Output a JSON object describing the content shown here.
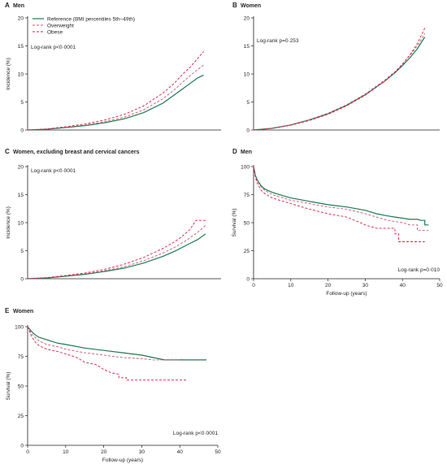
{
  "chart_data": [
    {
      "panel": "A",
      "type": "line",
      "title": "Men",
      "xlabel": "",
      "ylabel": "Incidence (%)",
      "xlim": [
        0,
        50
      ],
      "ylim": [
        0,
        20
      ],
      "yticks": [
        0,
        5,
        10,
        15,
        20
      ],
      "xticks": [],
      "annotation": "Log-rank p<0·0001",
      "legend": [
        "Reference (BMI percentiles 5th–49th)",
        "Overweight",
        "Obese"
      ],
      "series": [
        {
          "name": "Reference (BMI percentiles 5th–49th)",
          "color": "#1d7a52",
          "dash": "solid",
          "x": [
            0,
            5,
            10,
            15,
            20,
            25,
            30,
            35,
            38,
            40,
            42,
            44,
            45.5
          ],
          "y": [
            0,
            0.15,
            0.45,
            0.8,
            1.3,
            2.0,
            3.1,
            4.8,
            6.3,
            7.3,
            8.3,
            9.3,
            9.8
          ]
        },
        {
          "name": "Overweight",
          "color": "#c2577a",
          "dash": "3,2",
          "x": [
            0,
            5,
            10,
            15,
            20,
            25,
            30,
            35,
            38,
            40,
            42,
            44,
            45.5
          ],
          "y": [
            0,
            0.17,
            0.5,
            0.9,
            1.5,
            2.3,
            3.6,
            5.6,
            7.2,
            8.5,
            9.7,
            10.8,
            11.6
          ]
        },
        {
          "name": "Obese",
          "color": "#d9213b",
          "dash": "3,2",
          "x": [
            0,
            5,
            10,
            15,
            20,
            25,
            30,
            35,
            38,
            40,
            42,
            44,
            45.5
          ],
          "y": [
            0,
            0.2,
            0.6,
            1.1,
            1.8,
            2.8,
            4.3,
            6.6,
            8.4,
            9.9,
            11.2,
            12.8,
            14.0
          ]
        }
      ]
    },
    {
      "panel": "B",
      "type": "line",
      "title": "Women",
      "xlabel": "",
      "ylabel": "",
      "xlim": [
        0,
        50
      ],
      "ylim": [
        0,
        20
      ],
      "yticks": [
        0,
        5,
        10,
        15,
        20
      ],
      "xticks": [],
      "annotation": "Log-rank p=0·253",
      "series": [
        {
          "name": "Reference (BMI percentiles 5th–49th)",
          "color": "#1d7a52",
          "dash": "solid",
          "x": [
            0,
            5,
            10,
            15,
            20,
            25,
            30,
            35,
            38,
            40,
            42,
            44,
            46
          ],
          "y": [
            0,
            0.3,
            0.9,
            1.8,
            2.9,
            4.4,
            6.3,
            8.6,
            10.2,
            11.5,
            12.9,
            14.5,
            16.6
          ]
        },
        {
          "name": "Overweight",
          "color": "#c2577a",
          "dash": "3,2",
          "x": [
            0,
            5,
            10,
            15,
            20,
            25,
            30,
            35,
            38,
            40,
            42,
            44,
            46
          ],
          "y": [
            0,
            0.32,
            0.95,
            1.85,
            3.0,
            4.5,
            6.4,
            8.8,
            10.4,
            11.8,
            13.3,
            15.0,
            17.2
          ]
        },
        {
          "name": "Obese",
          "color": "#d9213b",
          "dash": "3,2",
          "x": [
            0,
            5,
            10,
            15,
            20,
            25,
            30,
            35,
            38,
            40,
            42,
            44,
            46
          ],
          "y": [
            0,
            0.28,
            0.85,
            1.7,
            2.8,
            4.3,
            6.2,
            8.6,
            10.3,
            11.7,
            13.4,
            15.4,
            18.2
          ]
        }
      ]
    },
    {
      "panel": "C",
      "type": "line",
      "title": "Women, excluding breast and cervical cancers",
      "xlabel": "",
      "ylabel": "Incidence (%)",
      "xlim": [
        0,
        50
      ],
      "ylim": [
        0,
        20
      ],
      "yticks": [
        0,
        5,
        10,
        15,
        20
      ],
      "xticks": [],
      "annotation": "Log-rank p<0·0001",
      "series": [
        {
          "name": "Reference (BMI percentiles 5th–49th)",
          "color": "#1d7a52",
          "dash": "solid",
          "x": [
            0,
            5,
            10,
            15,
            20,
            25,
            30,
            35,
            38,
            40,
            42,
            44,
            46
          ],
          "y": [
            0,
            0.15,
            0.45,
            0.8,
            1.3,
            1.9,
            2.8,
            4.0,
            4.9,
            5.6,
            6.3,
            7.0,
            8.0
          ]
        },
        {
          "name": "Overweight",
          "color": "#c2577a",
          "dash": "3,2",
          "x": [
            0,
            5,
            10,
            15,
            20,
            25,
            30,
            35,
            38,
            40,
            42,
            44,
            46
          ],
          "y": [
            0,
            0.17,
            0.5,
            0.9,
            1.45,
            2.15,
            3.2,
            4.6,
            5.6,
            6.4,
            7.3,
            8.3,
            9.5
          ]
        },
        {
          "name": "Obese",
          "color": "#d9213b",
          "dash": "3,2",
          "x": [
            0,
            5,
            10,
            15,
            20,
            25,
            30,
            35,
            38,
            40,
            42,
            43.5,
            46
          ],
          "y": [
            0,
            0.2,
            0.6,
            1.05,
            1.7,
            2.6,
            3.8,
            5.4,
            6.6,
            7.6,
            8.8,
            10.4,
            10.4
          ]
        }
      ]
    },
    {
      "panel": "D",
      "type": "line",
      "title": "Men",
      "xlabel": "Follow-up (years)",
      "ylabel": "Survival (%)",
      "xlim": [
        0,
        50
      ],
      "ylim": [
        0,
        100
      ],
      "yticks": [
        0,
        25,
        50,
        75,
        100
      ],
      "xticks": [
        0,
        10,
        20,
        30,
        40,
        50
      ],
      "annotation": "Log-rank p=0·010",
      "series": [
        {
          "name": "Reference (BMI percentiles 5th–49th)",
          "color": "#1d7a52",
          "dash": "solid",
          "x": [
            0,
            0.5,
            1,
            2,
            3,
            5,
            8,
            10,
            15,
            20,
            25,
            30,
            33,
            36,
            38,
            40,
            42,
            44,
            45,
            46,
            46,
            47
          ],
          "y": [
            100,
            92,
            88,
            83,
            80,
            77,
            74,
            72,
            69,
            66,
            64,
            61,
            58,
            56,
            55,
            54,
            53,
            53,
            52,
            52,
            48,
            48
          ]
        },
        {
          "name": "Overweight",
          "color": "#c2577a",
          "dash": "3,2",
          "x": [
            0,
            0.5,
            1,
            2,
            3,
            5,
            8,
            10,
            15,
            20,
            25,
            30,
            33,
            36,
            38,
            40,
            42,
            44,
            44,
            47
          ],
          "y": [
            100,
            91,
            87,
            82,
            79,
            75,
            72,
            70,
            67,
            64,
            62,
            58,
            55,
            52,
            51,
            50,
            48,
            48,
            43,
            43
          ]
        },
        {
          "name": "Obese",
          "color": "#d9213b",
          "dash": "3,2",
          "x": [
            0,
            0.5,
            1,
            2,
            3,
            5,
            8,
            10,
            15,
            20,
            25,
            28,
            30,
            33,
            36,
            38,
            38,
            39,
            39,
            46
          ],
          "y": [
            100,
            90,
            85,
            79,
            76,
            72,
            69,
            67,
            62,
            58,
            55,
            51,
            48,
            45,
            45,
            45,
            40,
            40,
            33,
            33
          ]
        }
      ]
    },
    {
      "panel": "E",
      "type": "line",
      "title": "Women",
      "xlabel": "Follow-up (years)",
      "ylabel": "Survival (%)",
      "xlim": [
        0,
        50
      ],
      "ylim": [
        0,
        100
      ],
      "yticks": [
        0,
        25,
        50,
        75,
        100
      ],
      "xticks": [
        0,
        10,
        20,
        30,
        40,
        50
      ],
      "annotation": "Log-rank p<0·0001",
      "series": [
        {
          "name": "Reference (BMI percentiles 5th–49th)",
          "color": "#1d7a52",
          "dash": "solid",
          "x": [
            0,
            1,
            2,
            3,
            5,
            8,
            10,
            15,
            20,
            25,
            30,
            33,
            36,
            40,
            47
          ],
          "y": [
            100,
            96,
            93,
            91,
            89,
            86,
            85,
            82,
            80,
            78,
            76,
            74,
            72,
            72,
            72
          ]
        },
        {
          "name": "Overweight",
          "color": "#c2577a",
          "dash": "3,2",
          "x": [
            0,
            1,
            2,
            3,
            5,
            8,
            10,
            15,
            20,
            25,
            30,
            33,
            35,
            38,
            40
          ],
          "y": [
            100,
            94,
            91,
            88,
            85,
            83,
            81,
            78,
            76,
            74,
            73,
            72,
            72,
            72,
            72
          ]
        },
        {
          "name": "Obese",
          "color": "#d9213b",
          "dash": "3,2",
          "x": [
            0,
            1,
            2,
            3,
            5,
            8,
            10,
            13,
            15,
            18,
            20,
            22,
            24,
            24,
            26,
            26,
            42
          ],
          "y": [
            100,
            92,
            87,
            84,
            81,
            79,
            77,
            74,
            70,
            68,
            64,
            61,
            60,
            57,
            57,
            55,
            55
          ]
        }
      ]
    }
  ]
}
